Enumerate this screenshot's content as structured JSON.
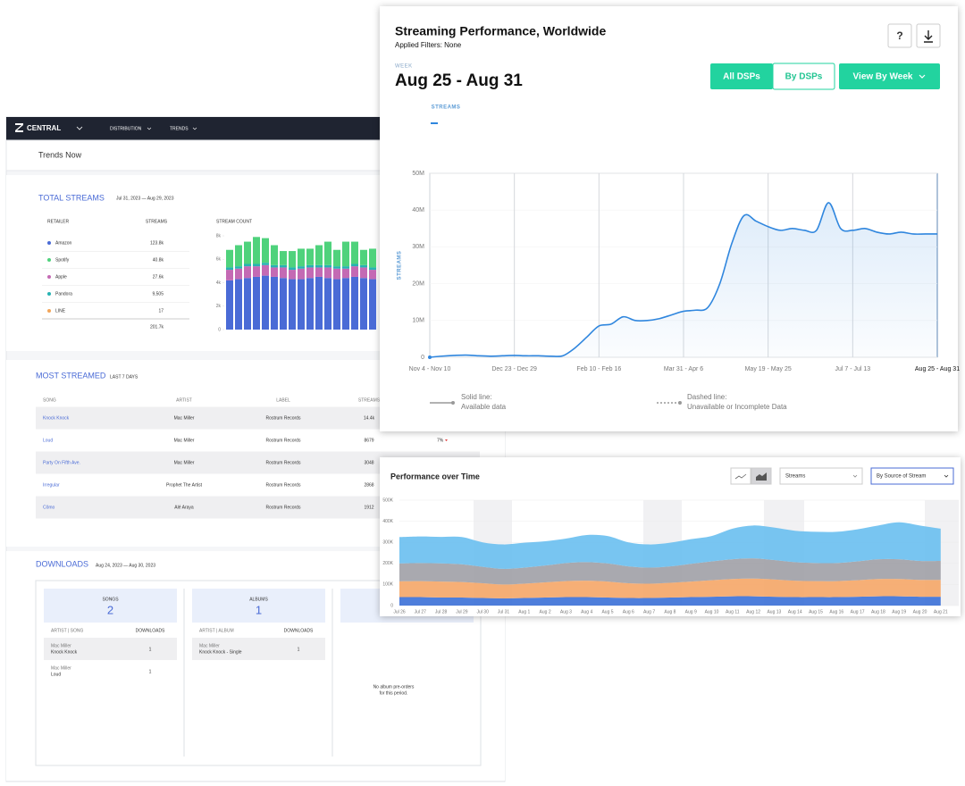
{
  "dashboard": {
    "nav": {
      "brand": "CENTRAL",
      "menu": [
        "DISTRIBUTION",
        "TRENDS"
      ]
    },
    "page_title": "Trends Now",
    "total_streams": {
      "title": "TOTAL STREAMS",
      "date_range": "Jul 31, 2023 — Aug 29, 2023",
      "columns": [
        "RETAILER",
        "STREAMS"
      ],
      "rows": [
        {
          "retailer": "Amazon",
          "streams": "123.8k",
          "color": "#4a6bd6"
        },
        {
          "retailer": "Spotify",
          "streams": "40.8k",
          "color": "#4fd27c"
        },
        {
          "retailer": "Apple",
          "streams": "27.6k",
          "color": "#c46ab4"
        },
        {
          "retailer": "Pandora",
          "streams": "9,505",
          "color": "#27b3b3"
        },
        {
          "retailer": "LINE",
          "streams": "17",
          "color": "#f2a65a"
        }
      ],
      "total": "201.7k",
      "chart": {
        "type": "bar",
        "stacked": true,
        "title": "STREAM COUNT",
        "categories": [
          null,
          null,
          null,
          null,
          null,
          null,
          null,
          null,
          null,
          null,
          null,
          null,
          null,
          null,
          null,
          null,
          null
        ],
        "series": [
          {
            "color": "#4a6bd6",
            "values": [
              4200,
              4300,
              4400,
              4500,
              4600,
              4500,
              4400,
              4300,
              4300,
              4400,
              4500,
              4400,
              4300,
              4400,
              4500,
              4400,
              4300
            ]
          },
          {
            "color": "#c46ab4",
            "values": [
              900,
              900,
              1000,
              900,
              900,
              800,
              900,
              800,
              900,
              900,
              800,
              900,
              900,
              800,
              900,
              900,
              800
            ]
          },
          {
            "color": "#27b3b3",
            "values": [
              200,
              200,
              200,
              200,
              200,
              200,
              200,
              200,
              200,
              200,
              200,
              200,
              200,
              200,
              200,
              200,
              200
            ]
          },
          {
            "color": "#4fd27c",
            "values": [
              1500,
              1800,
              1900,
              2300,
              2100,
              1700,
              1200,
              1400,
              1500,
              1400,
              1700,
              2000,
              1400,
              2100,
              1900,
              1300,
              1600
            ]
          }
        ],
        "ylim": [
          0,
          8000
        ],
        "yticks": [
          0,
          {
            "value": 2000,
            "label": "2k"
          },
          {
            "value": 4000,
            "label": "4k"
          },
          {
            "value": 6000,
            "label": "6k"
          },
          {
            "value": 8000,
            "label": "8k"
          }
        ]
      }
    },
    "most_streamed": {
      "title": "MOST STREAMED",
      "period": "LAST 7 DAYS",
      "columns": [
        "SONG",
        "ARTIST",
        "LABEL",
        "STREAMS"
      ],
      "rows": [
        {
          "song": "Knock Knock",
          "artist": "Mac Miller",
          "label": "Rostrum Records",
          "streams": "14.4k"
        },
        {
          "song": "Loud",
          "artist": "Mac Miller",
          "label": "Rostrum Records",
          "streams": "8679",
          "change": "7%"
        },
        {
          "song": "Party On Fifth Ave.",
          "artist": "Mac Miller",
          "label": "Rostrum Records",
          "streams": "3048"
        },
        {
          "song": "Irregular",
          "artist": "Prophet The Artist",
          "label": "Rostrum Records",
          "streams": "2868"
        },
        {
          "song": "Cômo",
          "artist": "Alé Araya",
          "label": "Rostrum Records",
          "streams": "1912"
        }
      ]
    },
    "downloads": {
      "title": "DOWNLOADS",
      "date_range": "Aug 24, 2023 — Aug 30, 2023",
      "cards": [
        {
          "title": "SONGS",
          "count": 2,
          "columns": [
            "ARTIST | SONG",
            "DOWNLOADS"
          ],
          "rows": [
            {
              "artist": "Mac Miller",
              "item": "Knock Knock",
              "downloads": 1
            },
            {
              "artist": "Mac Miller",
              "item": "Loud",
              "downloads": 1
            }
          ]
        },
        {
          "title": "ALBUMS",
          "count": 1,
          "columns": [
            "ARTIST | ALBUM",
            "DOWNLOADS"
          ],
          "rows": [
            {
              "artist": "Mac Miller",
              "item": "Knock Knock - Single",
              "downloads": 1
            }
          ]
        },
        {
          "message": [
            "No album pre-orders",
            "for this period."
          ]
        }
      ]
    }
  },
  "streaming_performance": {
    "title": "Streaming Performance, Worldwide",
    "filters": "Applied Filters: None",
    "help": "?",
    "week_label": "WEEK",
    "week": "Aug 25 - Aug 31",
    "buttons": [
      "All DSPs",
      "By DSPs",
      "View By Week"
    ],
    "tab": "STREAMS",
    "chart": {
      "type": "line",
      "y_label": "STREAMS",
      "color": "#2f86de",
      "categories": [
        "Nov 4 - Nov 10",
        null,
        null,
        null,
        null,
        null,
        null,
        "Dec 23 - Dec 29",
        null,
        null,
        null,
        null,
        null,
        null,
        "Feb 10 - Feb 16",
        null,
        null,
        null,
        null,
        null,
        null,
        "Mar 31 - Apr 6",
        null,
        null,
        null,
        null,
        null,
        null,
        "May 19 - May 25",
        null,
        null,
        null,
        null,
        null,
        null,
        "Jul 7 - Jul 13",
        null,
        null,
        null,
        null,
        null,
        null,
        "Aug 25 - Aug 31"
      ],
      "values": [
        0,
        300000,
        500000,
        600000,
        400000,
        300000,
        400000,
        500000,
        400000,
        400000,
        300000,
        400000,
        2500000,
        5500000,
        8500000,
        9000000,
        11000000,
        10000000,
        10000000,
        10500000,
        11500000,
        12500000,
        12800000,
        13500000,
        20000000,
        31000000,
        38500000,
        37000000,
        35500000,
        34500000,
        35000000,
        34500000,
        34500000,
        42000000,
        35000000,
        34500000,
        35000000,
        34000000,
        33500000,
        34000000,
        33500000,
        33500000,
        33500000
      ],
      "ylim": [
        0,
        50000000
      ],
      "yticks": [
        0,
        {
          "value": 10000000,
          "label": "10M"
        },
        {
          "value": 20000000,
          "label": "20M"
        },
        {
          "value": 30000000,
          "label": "30M"
        },
        {
          "value": 40000000,
          "label": "40M"
        },
        {
          "value": 50000000,
          "label": "50M"
        }
      ]
    },
    "legend": [
      {
        "title": "Solid line:",
        "text": "Available data"
      },
      {
        "title": "Dashed line:",
        "text": "Unavailable or Incomplete Data"
      }
    ]
  },
  "performance_over_time": {
    "title": "Performance over Time",
    "metric": "Streams",
    "grouping": "By Source of Stream",
    "chart": {
      "type": "area",
      "stacked": true,
      "categories": [
        "Jul 26",
        "Jul 27",
        "Jul 28",
        "Jul 29",
        "Jul 30",
        "Jul 31",
        "Aug 1",
        "Aug 2",
        "Aug 3",
        "Aug 4",
        "Aug 5",
        "Aug 6",
        "Aug 7",
        "Aug 8",
        "Aug 9",
        "Aug 10",
        "Aug 11",
        "Aug 12",
        "Aug 13",
        "Aug 14",
        "Aug 15",
        "Aug 16",
        "Aug 17",
        "Aug 18",
        "Aug 19",
        "Aug 20",
        "Aug 21"
      ],
      "series": [
        {
          "color": "#3f73d8",
          "values": [
            40000,
            40000,
            38000,
            38000,
            36000,
            34000,
            36000,
            38000,
            40000,
            40000,
            38000,
            36000,
            36000,
            38000,
            40000,
            42000,
            44000,
            44000,
            42000,
            40000,
            40000,
            40000,
            42000,
            44000,
            44000,
            42000,
            42000
          ]
        },
        {
          "color": "#f5a86a",
          "values": [
            75000,
            76000,
            76000,
            74000,
            70000,
            66000,
            68000,
            72000,
            76000,
            78000,
            76000,
            70000,
            68000,
            70000,
            74000,
            78000,
            82000,
            84000,
            82000,
            78000,
            76000,
            76000,
            78000,
            82000,
            82000,
            80000,
            80000
          ]
        },
        {
          "color": "#a2a2a8",
          "values": [
            85000,
            86000,
            86000,
            84000,
            78000,
            74000,
            76000,
            80000,
            86000,
            88000,
            86000,
            80000,
            76000,
            78000,
            84000,
            90000,
            94000,
            96000,
            92000,
            88000,
            86000,
            86000,
            90000,
            94000,
            94000,
            90000,
            90000
          ]
        },
        {
          "color": "#6cc0f0",
          "values": [
            125000,
            126000,
            126000,
            129000,
            116000,
            116000,
            118000,
            115000,
            116000,
            129000,
            130000,
            114000,
            110000,
            112000,
            117000,
            120000,
            145000,
            156000,
            154000,
            149000,
            148000,
            148000,
            152000,
            160000,
            175000,
            168000,
            153000
          ]
        }
      ],
      "ylim": [
        0,
        500000
      ],
      "yticks": [
        0,
        {
          "value": 100000,
          "label": "100K"
        },
        {
          "value": 200000,
          "label": "200K"
        },
        {
          "value": 300000,
          "label": "300K"
        },
        {
          "value": 400000,
          "label": "400K"
        },
        {
          "value": 500000,
          "label": "500K"
        }
      ]
    }
  }
}
